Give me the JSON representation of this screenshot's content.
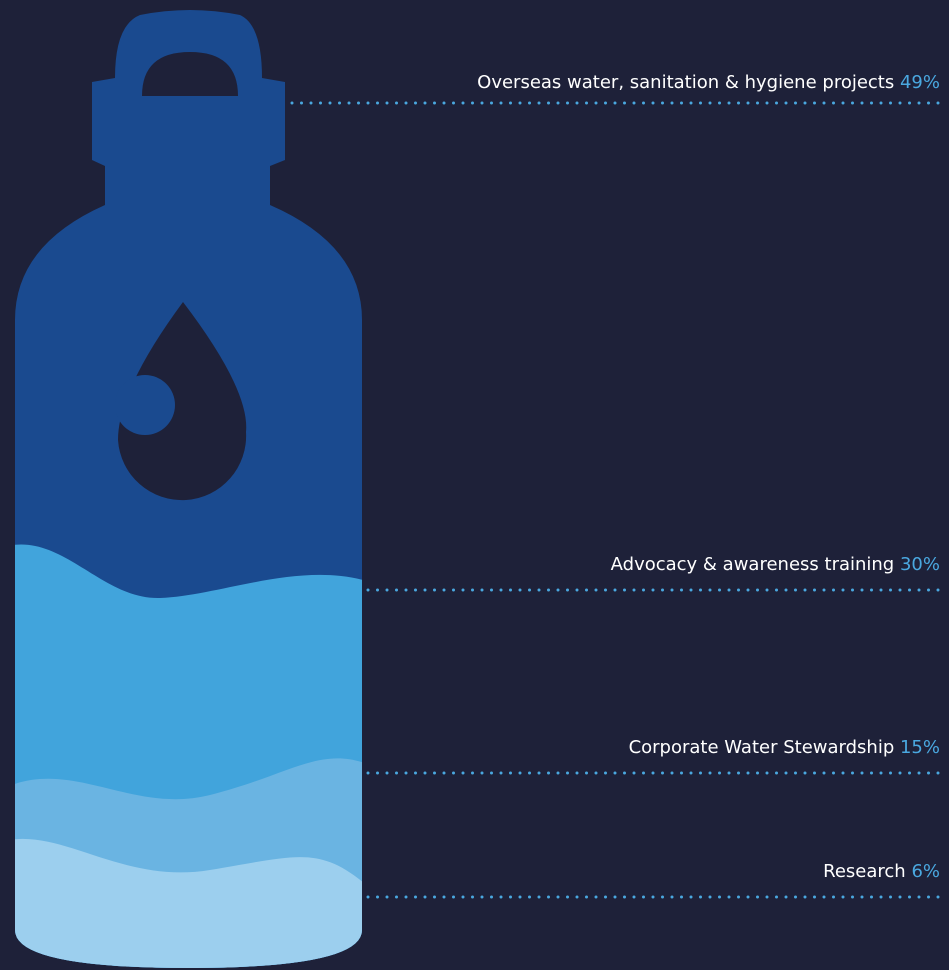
{
  "segments": [
    {
      "label": "Overseas water, sanitation & hygiene projects",
      "percent": "49%"
    },
    {
      "label": "Advocacy & awareness training",
      "percent": "30%"
    },
    {
      "label": "Corporate Water Stewardship",
      "percent": "15%"
    },
    {
      "label": "Research",
      "percent": "6%"
    }
  ]
}
